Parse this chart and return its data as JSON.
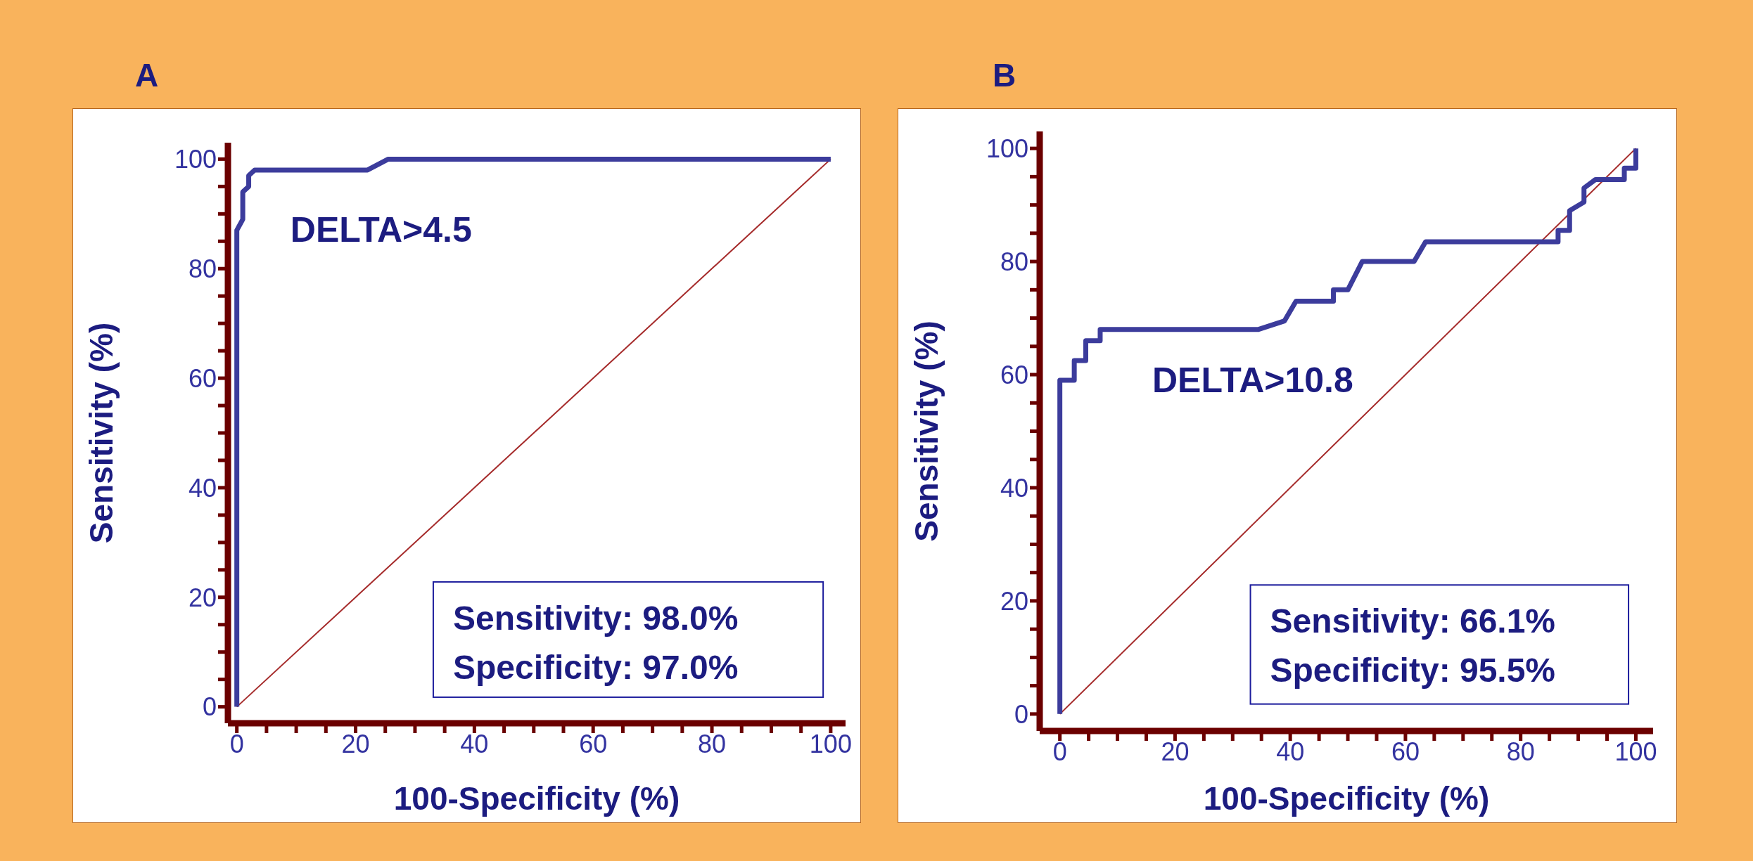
{
  "chart_data": [
    {
      "type": "line",
      "title": "A",
      "xlabel": "100-Specificity (%)",
      "ylabel": "Sensitivity (%)",
      "marker": "none",
      "xlim": [
        -1.5,
        102.5
      ],
      "ylim": [
        -3,
        103
      ],
      "xticks": [
        0,
        {
          "value": 5,
          "label": null
        },
        {
          "value": 10,
          "label": null
        },
        {
          "value": 15,
          "label": null
        },
        20,
        {
          "value": 25,
          "label": null
        },
        {
          "value": 30,
          "label": null
        },
        {
          "value": 35,
          "label": null
        },
        40,
        {
          "value": 45,
          "label": null
        },
        {
          "value": 50,
          "label": null
        },
        {
          "value": 55,
          "label": null
        },
        60,
        {
          "value": 65,
          "label": null
        },
        {
          "value": 70,
          "label": null
        },
        {
          "value": 75,
          "label": null
        },
        80,
        {
          "value": 85,
          "label": null
        },
        {
          "value": 90,
          "label": null
        },
        {
          "value": 95,
          "label": null
        },
        100
      ],
      "yticks": [
        0,
        {
          "value": 5,
          "label": null
        },
        {
          "value": 10,
          "label": null
        },
        {
          "value": 15,
          "label": null
        },
        20,
        {
          "value": 25,
          "label": null
        },
        {
          "value": 30,
          "label": null
        },
        {
          "value": 35,
          "label": null
        },
        40,
        {
          "value": 45,
          "label": null
        },
        {
          "value": 50,
          "label": null
        },
        {
          "value": 55,
          "label": null
        },
        60,
        {
          "value": 65,
          "label": null
        },
        {
          "value": 70,
          "label": null
        },
        {
          "value": 75,
          "label": null
        },
        80,
        {
          "value": 85,
          "label": null
        },
        {
          "value": 90,
          "label": null
        },
        {
          "value": 95,
          "label": null
        },
        100
      ],
      "series": [
        {
          "color": "#a52a2a",
          "x": [
            0,
            100
          ],
          "values": [
            0,
            100
          ]
        },
        {
          "color": "#3c3c9c",
          "x": [
            0,
            0,
            1,
            1,
            2,
            2,
            3,
            22,
            25.5,
            100
          ],
          "values": [
            0,
            87,
            89,
            94,
            95,
            97,
            98,
            98,
            100,
            100
          ]
        }
      ],
      "annotations": [
        "DELTA>4.5",
        "Sensitivity: 98.0%",
        "Specificity: 97.0%"
      ]
    },
    {
      "type": "line",
      "title": "B",
      "xlabel": "100-Specificity (%)",
      "ylabel": "Sensitivity (%)",
      "marker": "none",
      "xlim": [
        -3.5,
        103
      ],
      "ylim": [
        -3,
        103
      ],
      "xticks": [
        0,
        {
          "value": 5,
          "label": null
        },
        {
          "value": 10,
          "label": null
        },
        {
          "value": 15,
          "label": null
        },
        20,
        {
          "value": 25,
          "label": null
        },
        {
          "value": 30,
          "label": null
        },
        {
          "value": 35,
          "label": null
        },
        40,
        {
          "value": 45,
          "label": null
        },
        {
          "value": 50,
          "label": null
        },
        {
          "value": 55,
          "label": null
        },
        60,
        {
          "value": 65,
          "label": null
        },
        {
          "value": 70,
          "label": null
        },
        {
          "value": 75,
          "label": null
        },
        80,
        {
          "value": 85,
          "label": null
        },
        {
          "value": 90,
          "label": null
        },
        {
          "value": 95,
          "label": null
        },
        100
      ],
      "yticks": [
        0,
        {
          "value": 5,
          "label": null
        },
        {
          "value": 10,
          "label": null
        },
        {
          "value": 15,
          "label": null
        },
        20,
        {
          "value": 25,
          "label": null
        },
        {
          "value": 30,
          "label": null
        },
        {
          "value": 35,
          "label": null
        },
        40,
        {
          "value": 45,
          "label": null
        },
        {
          "value": 50,
          "label": null
        },
        {
          "value": 55,
          "label": null
        },
        60,
        {
          "value": 65,
          "label": null
        },
        {
          "value": 70,
          "label": null
        },
        {
          "value": 75,
          "label": null
        },
        80,
        {
          "value": 85,
          "label": null
        },
        {
          "value": 90,
          "label": null
        },
        {
          "value": 95,
          "label": null
        },
        100
      ],
      "series": [
        {
          "color": "#a52a2a",
          "x": [
            0,
            100
          ],
          "values": [
            0,
            100
          ]
        },
        {
          "color": "#3c3c9c",
          "x": [
            0,
            0,
            2.5,
            2.5,
            4.5,
            4.5,
            7,
            7,
            34.5,
            39,
            41,
            47.5,
            47.5,
            50,
            52.5,
            61.5,
            63.5,
            86.5,
            86.5,
            88.5,
            88.5,
            91,
            91,
            93,
            98,
            98,
            100,
            100
          ],
          "values": [
            0,
            59,
            59,
            62.5,
            62.5,
            66,
            66,
            68,
            68,
            69.5,
            73,
            73,
            75,
            75,
            80,
            80,
            83.5,
            83.5,
            85.5,
            85.5,
            89,
            90.5,
            93,
            94.5,
            94.5,
            96.5,
            96.5,
            100
          ]
        }
      ],
      "annotations": [
        "DELTA>10.8",
        "Sensitivity: 66.1%",
        "Specificity: 95.5%"
      ]
    }
  ]
}
